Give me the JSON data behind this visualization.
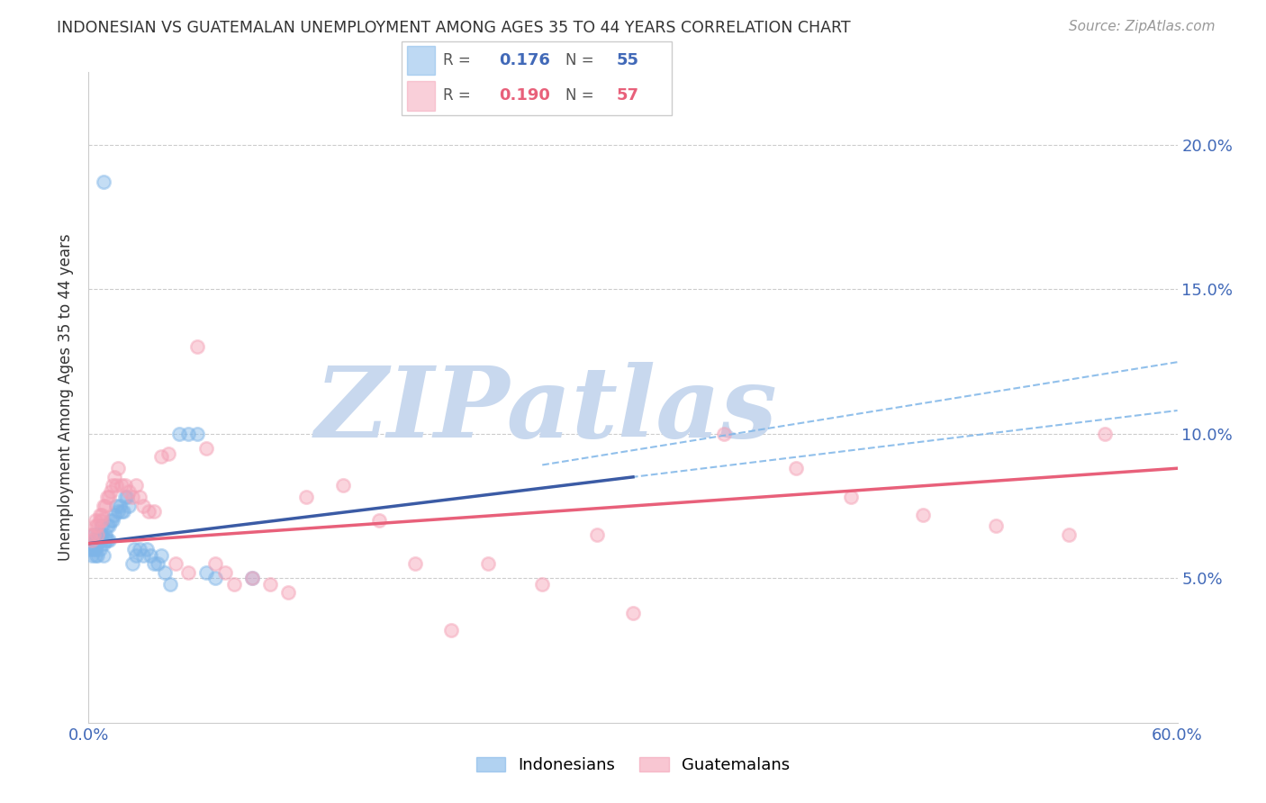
{
  "title": "INDONESIAN VS GUATEMALAN UNEMPLOYMENT AMONG AGES 35 TO 44 YEARS CORRELATION CHART",
  "source": "Source: ZipAtlas.com",
  "ylabel": "Unemployment Among Ages 35 to 44 years",
  "xlim": [
    0.0,
    0.6
  ],
  "ylim": [
    0.0,
    0.225
  ],
  "indonesian_color": "#7EB5E8",
  "guatemalan_color": "#F4A0B5",
  "line_blue": "#3B5BA5",
  "line_pink": "#E8607A",
  "ci_color": "#7EB5E8",
  "watermark_text": "ZIPatlas",
  "watermark_color": "#c8d8ee",
  "legend_r1": "0.176",
  "legend_n1": "55",
  "legend_r2": "0.190",
  "legend_n2": "57",
  "indo_x": [
    0.001,
    0.002,
    0.002,
    0.003,
    0.003,
    0.004,
    0.004,
    0.004,
    0.005,
    0.005,
    0.005,
    0.006,
    0.006,
    0.006,
    0.007,
    0.007,
    0.007,
    0.008,
    0.008,
    0.009,
    0.009,
    0.01,
    0.01,
    0.011,
    0.011,
    0.012,
    0.013,
    0.014,
    0.015,
    0.016,
    0.017,
    0.018,
    0.019,
    0.02,
    0.021,
    0.022,
    0.024,
    0.025,
    0.026,
    0.028,
    0.03,
    0.032,
    0.034,
    0.036,
    0.038,
    0.04,
    0.042,
    0.045,
    0.05,
    0.055,
    0.06,
    0.065,
    0.07,
    0.09,
    0.008
  ],
  "indo_y": [
    0.06,
    0.062,
    0.058,
    0.06,
    0.065,
    0.063,
    0.06,
    0.058,
    0.065,
    0.062,
    0.058,
    0.065,
    0.063,
    0.06,
    0.063,
    0.065,
    0.068,
    0.062,
    0.058,
    0.063,
    0.065,
    0.063,
    0.068,
    0.068,
    0.063,
    0.07,
    0.07,
    0.072,
    0.075,
    0.073,
    0.075,
    0.073,
    0.073,
    0.078,
    0.078,
    0.075,
    0.055,
    0.06,
    0.058,
    0.06,
    0.058,
    0.06,
    0.058,
    0.055,
    0.055,
    0.058,
    0.052,
    0.048,
    0.1,
    0.1,
    0.1,
    0.052,
    0.05,
    0.05,
    0.187
  ],
  "guat_x": [
    0.001,
    0.002,
    0.003,
    0.004,
    0.004,
    0.005,
    0.005,
    0.006,
    0.006,
    0.007,
    0.007,
    0.008,
    0.009,
    0.01,
    0.011,
    0.012,
    0.013,
    0.014,
    0.015,
    0.016,
    0.018,
    0.02,
    0.022,
    0.024,
    0.026,
    0.028,
    0.03,
    0.033,
    0.036,
    0.04,
    0.044,
    0.048,
    0.055,
    0.06,
    0.065,
    0.07,
    0.075,
    0.08,
    0.09,
    0.1,
    0.11,
    0.12,
    0.14,
    0.16,
    0.18,
    0.2,
    0.22,
    0.25,
    0.28,
    0.3,
    0.35,
    0.39,
    0.42,
    0.46,
    0.5,
    0.54,
    0.56
  ],
  "guat_y": [
    0.065,
    0.063,
    0.065,
    0.068,
    0.07,
    0.065,
    0.068,
    0.07,
    0.072,
    0.07,
    0.072,
    0.075,
    0.075,
    0.078,
    0.078,
    0.08,
    0.082,
    0.085,
    0.082,
    0.088,
    0.082,
    0.082,
    0.08,
    0.078,
    0.082,
    0.078,
    0.075,
    0.073,
    0.073,
    0.092,
    0.093,
    0.055,
    0.052,
    0.13,
    0.095,
    0.055,
    0.052,
    0.048,
    0.05,
    0.048,
    0.045,
    0.078,
    0.082,
    0.07,
    0.055,
    0.032,
    0.055,
    0.048,
    0.065,
    0.038,
    0.1,
    0.088,
    0.078,
    0.072,
    0.068,
    0.065,
    0.1
  ]
}
